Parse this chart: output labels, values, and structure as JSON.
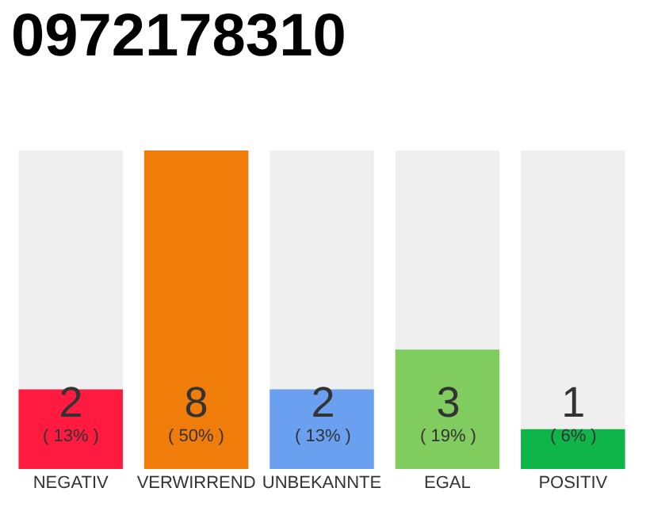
{
  "chart_data": {
    "type": "bar",
    "title": "0972178310",
    "categories": [
      "NEGATIV",
      "VERWIRREND",
      "UNBEKANNTE",
      "EGAL",
      "POSITIV"
    ],
    "values": [
      2,
      8,
      2,
      3,
      1
    ],
    "colors": [
      "#ff1a40",
      "#f07d0a",
      "#6aa0ef",
      "#80cc5e",
      "#10b54a"
    ],
    "value_labels": [
      "2\n( 13% )",
      "8\n( 50% )",
      "2\n( 13% )",
      "3\n( 19% )",
      "1\n( 6% )"
    ],
    "ylim": [
      0,
      8
    ],
    "tick_labels": "x",
    "grid": false,
    "legend": false
  }
}
